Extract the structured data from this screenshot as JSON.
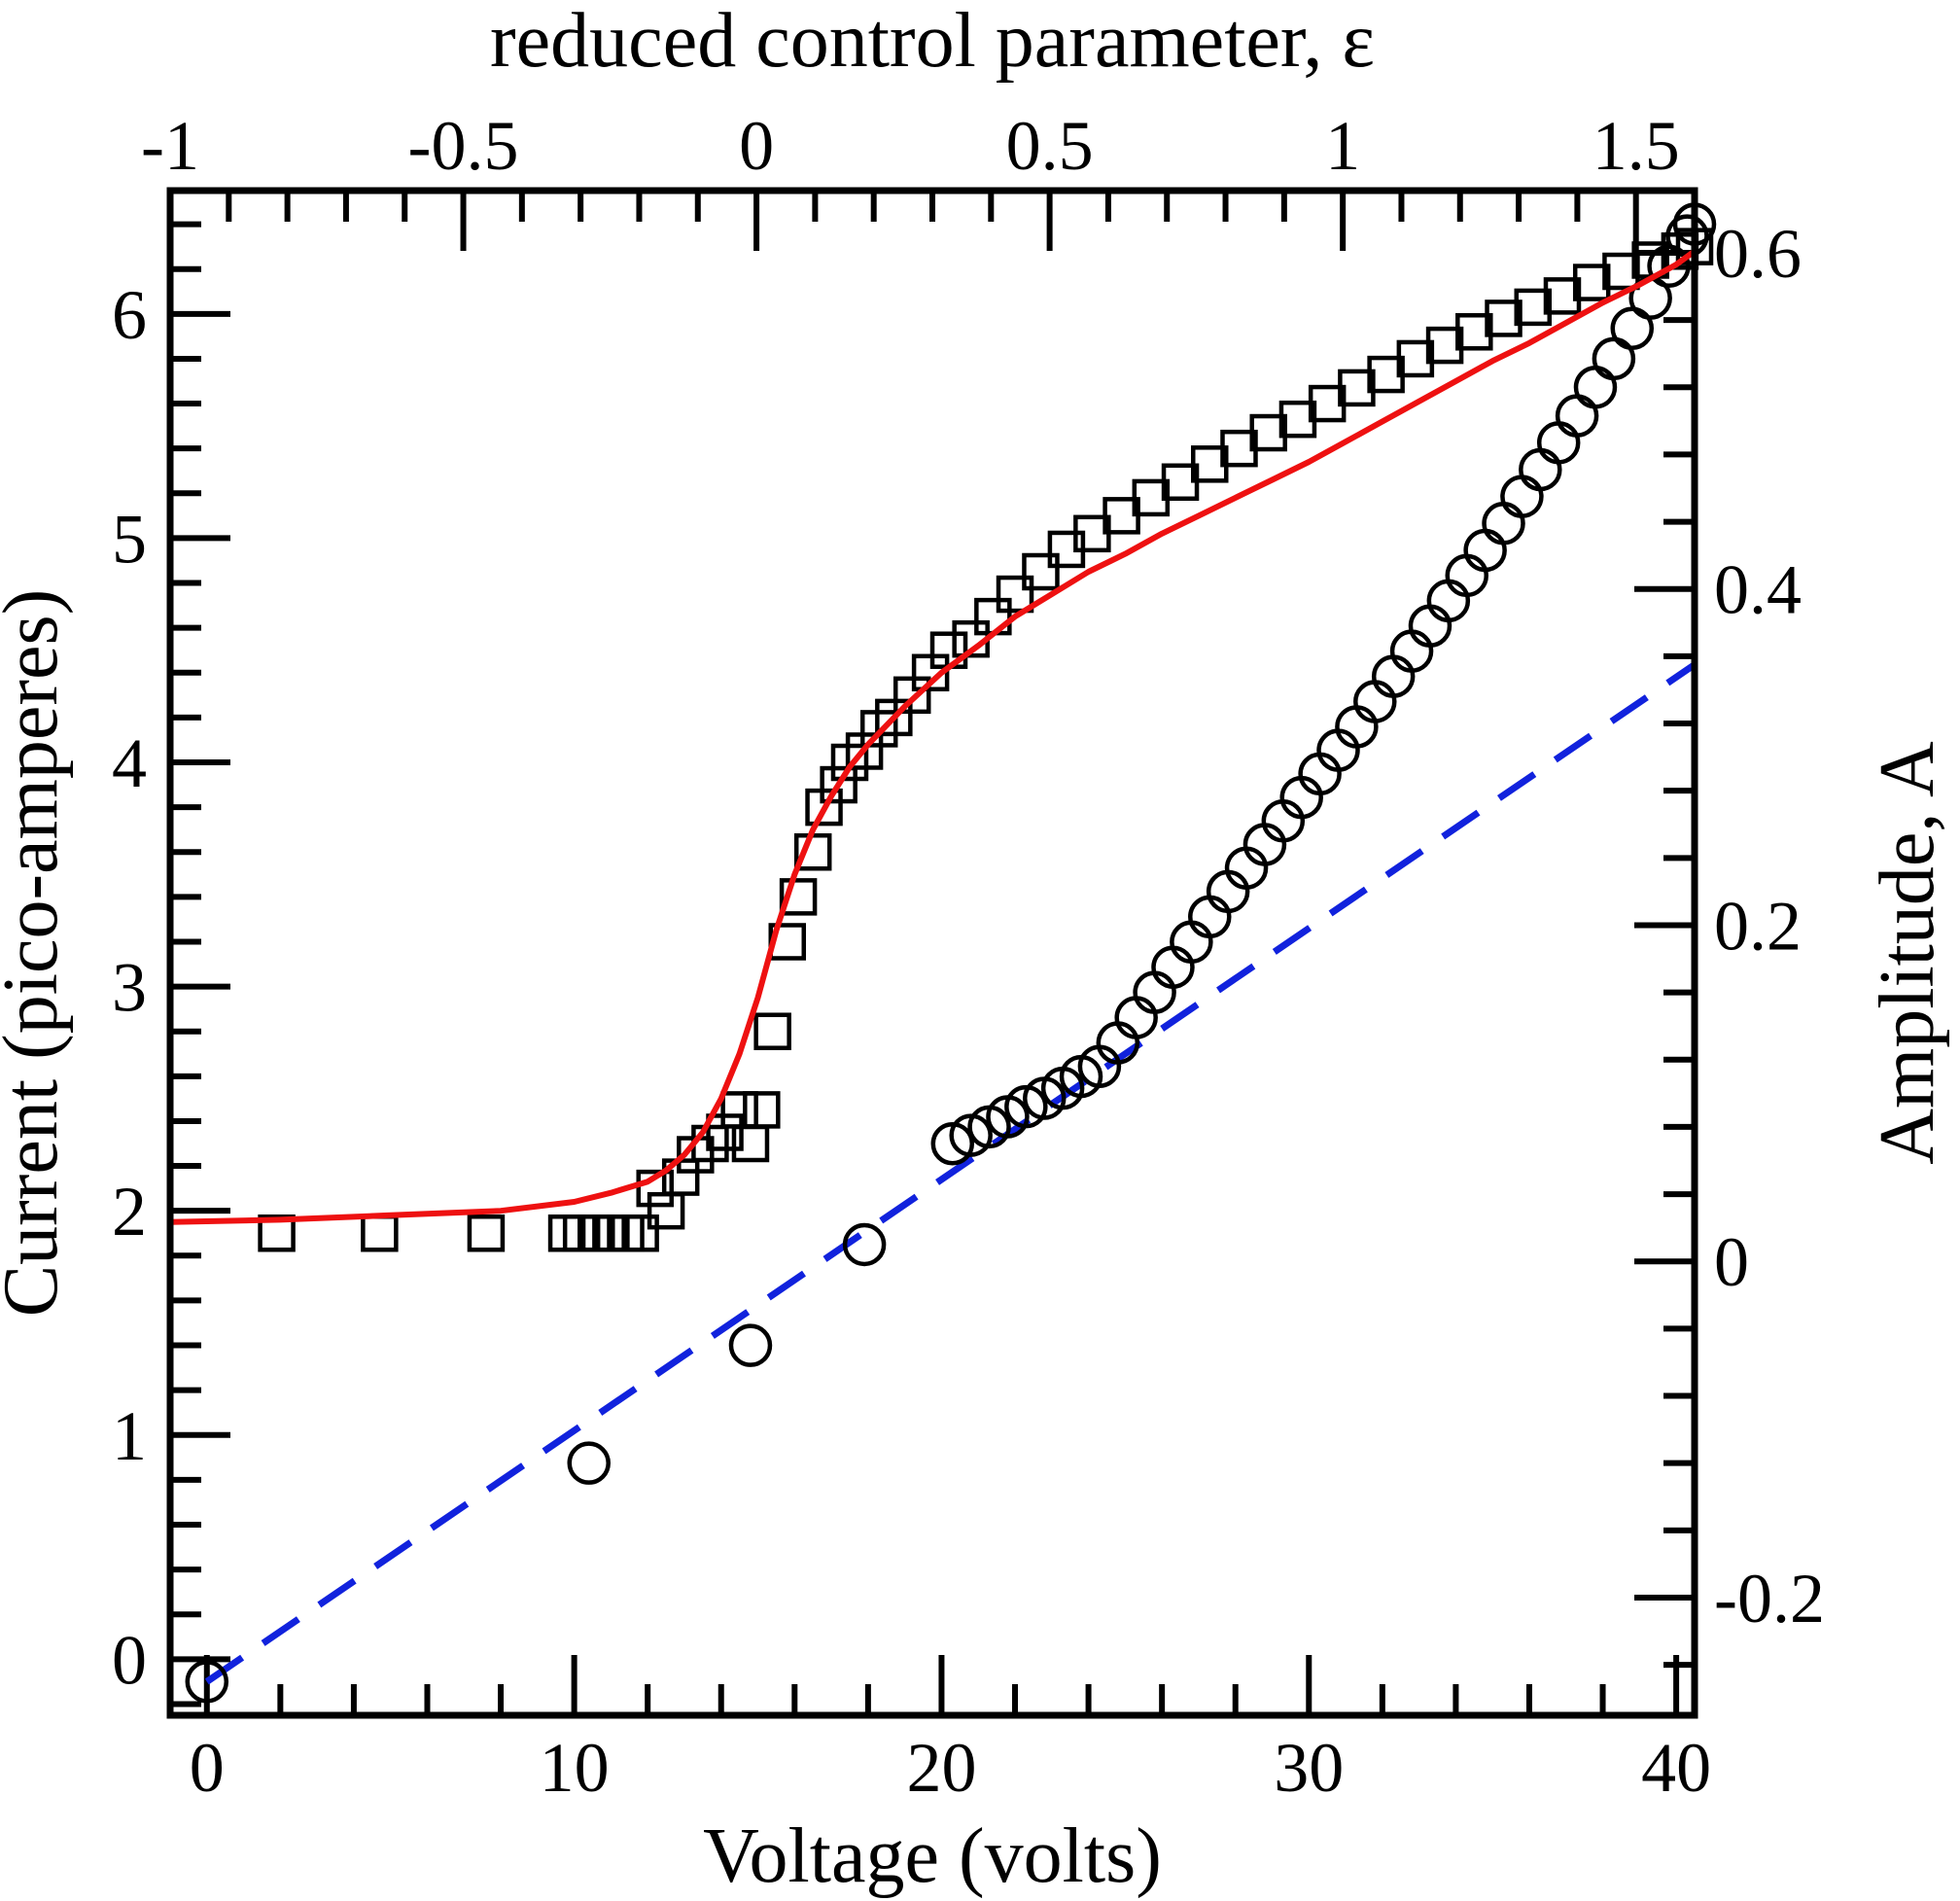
{
  "chart_data": {
    "type": "scatter",
    "x_bottom": {
      "label": "Voltage (volts)",
      "range": [
        -1,
        40.5
      ],
      "ticks": [
        0,
        10,
        20,
        30,
        40
      ],
      "tick_labels": [
        "0",
        "10",
        "20",
        "30",
        "40"
      ],
      "minor_step": 2
    },
    "x_top": {
      "label": "reduced control parameter, ε",
      "range": [
        -1,
        1.6
      ],
      "ticks": [
        -1,
        -0.5,
        0,
        0.5,
        1,
        1.5
      ],
      "tick_labels": [
        "-1",
        "-0.5",
        "0",
        "0.5",
        "1",
        "1.5"
      ],
      "minor_step": 0.1
    },
    "y_left": {
      "label": "Current (pico-amperes)",
      "range": [
        -0.25,
        6.55
      ],
      "ticks": [
        0,
        1,
        2,
        3,
        4,
        5,
        6
      ],
      "tick_labels": [
        "0",
        "1",
        "2",
        "3",
        "4",
        "5",
        "6"
      ],
      "minor_step": 0.2
    },
    "y_right": {
      "label": "Amplitude, A",
      "range": [
        -0.27,
        0.637
      ],
      "ticks": [
        -0.2,
        0,
        0.2,
        0.4,
        0.6
      ],
      "tick_labels": [
        "-0.2",
        "0",
        "0.2",
        "0.4",
        "0.6"
      ],
      "minor_step": 0.04
    },
    "grid": false,
    "series": [
      {
        "marker": "square",
        "axis": "left",
        "color": "#000000",
        "points": [
          [
            1.9,
            1.9
          ],
          [
            4.7,
            1.9
          ],
          [
            7.6,
            1.9
          ],
          [
            9.8,
            1.9
          ],
          [
            10.2,
            1.9
          ],
          [
            10.6,
            1.9
          ],
          [
            11.0,
            1.9
          ],
          [
            11.4,
            1.9
          ],
          [
            11.8,
            1.9
          ],
          [
            12.2,
            2.1
          ],
          [
            12.5,
            2.0
          ],
          [
            12.9,
            2.15
          ],
          [
            13.3,
            2.25
          ],
          [
            13.7,
            2.3
          ],
          [
            14.1,
            2.35
          ],
          [
            14.5,
            2.45
          ],
          [
            14.8,
            2.3
          ],
          [
            15.1,
            2.45
          ],
          [
            15.4,
            2.8
          ],
          [
            15.8,
            3.2
          ],
          [
            16.1,
            3.4
          ],
          [
            16.5,
            3.6
          ],
          [
            16.8,
            3.8
          ],
          [
            17.2,
            3.9
          ],
          [
            17.5,
            4.0
          ],
          [
            17.9,
            4.05
          ],
          [
            18.3,
            4.15
          ],
          [
            18.7,
            4.2
          ],
          [
            19.2,
            4.3
          ],
          [
            19.7,
            4.4
          ],
          [
            20.2,
            4.5
          ],
          [
            20.8,
            4.55
          ],
          [
            21.4,
            4.65
          ],
          [
            22.0,
            4.75
          ],
          [
            22.7,
            4.85
          ],
          [
            23.4,
            4.95
          ],
          [
            24.1,
            5.02
          ],
          [
            24.9,
            5.1
          ],
          [
            25.7,
            5.18
          ],
          [
            26.5,
            5.25
          ],
          [
            27.3,
            5.33
          ],
          [
            28.1,
            5.4
          ],
          [
            28.9,
            5.47
          ],
          [
            29.7,
            5.53
          ],
          [
            30.5,
            5.6
          ],
          [
            31.3,
            5.67
          ],
          [
            32.1,
            5.73
          ],
          [
            32.9,
            5.8
          ],
          [
            33.7,
            5.86
          ],
          [
            34.5,
            5.92
          ],
          [
            35.3,
            5.98
          ],
          [
            36.1,
            6.03
          ],
          [
            36.9,
            6.08
          ],
          [
            37.7,
            6.14
          ],
          [
            38.5,
            6.19
          ],
          [
            39.3,
            6.24
          ],
          [
            40.1,
            6.28
          ],
          [
            40.5,
            6.3
          ]
        ]
      },
      {
        "marker": "circle",
        "axis": "right",
        "color": "#000000",
        "points": [
          [
            0.0,
            -0.25
          ],
          [
            10.4,
            -0.12
          ],
          [
            14.8,
            -0.05
          ],
          [
            17.9,
            0.01
          ],
          [
            20.3,
            0.07
          ],
          [
            20.8,
            0.075
          ],
          [
            21.3,
            0.08
          ],
          [
            21.8,
            0.086
          ],
          [
            22.3,
            0.092
          ],
          [
            22.8,
            0.097
          ],
          [
            23.3,
            0.103
          ],
          [
            23.8,
            0.11
          ],
          [
            24.3,
            0.116
          ],
          [
            24.8,
            0.13
          ],
          [
            25.3,
            0.145
          ],
          [
            25.8,
            0.16
          ],
          [
            26.3,
            0.175
          ],
          [
            26.8,
            0.19
          ],
          [
            27.3,
            0.205
          ],
          [
            27.8,
            0.22
          ],
          [
            28.3,
            0.234
          ],
          [
            28.8,
            0.248
          ],
          [
            29.3,
            0.262
          ],
          [
            29.8,
            0.276
          ],
          [
            30.3,
            0.29
          ],
          [
            30.8,
            0.304
          ],
          [
            31.3,
            0.318
          ],
          [
            31.8,
            0.333
          ],
          [
            32.3,
            0.348
          ],
          [
            32.8,
            0.363
          ],
          [
            33.3,
            0.378
          ],
          [
            33.8,
            0.393
          ],
          [
            34.3,
            0.408
          ],
          [
            34.8,
            0.423
          ],
          [
            35.3,
            0.439
          ],
          [
            35.8,
            0.455
          ],
          [
            36.3,
            0.471
          ],
          [
            36.8,
            0.487
          ],
          [
            37.3,
            0.503
          ],
          [
            37.8,
            0.52
          ],
          [
            38.3,
            0.537
          ],
          [
            38.8,
            0.555
          ],
          [
            39.3,
            0.573
          ],
          [
            39.8,
            0.592
          ],
          [
            40.3,
            0.61
          ],
          [
            40.5,
            0.617
          ]
        ]
      },
      {
        "style": "solid line",
        "axis": "left",
        "color": "#ee1111",
        "points": [
          [
            -1.0,
            1.95
          ],
          [
            2.0,
            1.96
          ],
          [
            5.0,
            1.98
          ],
          [
            8.0,
            2.0
          ],
          [
            10.0,
            2.04
          ],
          [
            11.0,
            2.08
          ],
          [
            12.0,
            2.13
          ],
          [
            12.5,
            2.18
          ],
          [
            13.0,
            2.25
          ],
          [
            13.5,
            2.35
          ],
          [
            14.0,
            2.5
          ],
          [
            14.5,
            2.7
          ],
          [
            15.0,
            2.95
          ],
          [
            15.5,
            3.25
          ],
          [
            16.0,
            3.5
          ],
          [
            16.5,
            3.7
          ],
          [
            17.0,
            3.85
          ],
          [
            17.5,
            3.98
          ],
          [
            18.0,
            4.08
          ],
          [
            19.0,
            4.25
          ],
          [
            20.0,
            4.4
          ],
          [
            21.0,
            4.52
          ],
          [
            22.0,
            4.65
          ],
          [
            23.0,
            4.75
          ],
          [
            24.0,
            4.85
          ],
          [
            25.0,
            4.93
          ],
          [
            26.0,
            5.02
          ],
          [
            27.0,
            5.1
          ],
          [
            28.0,
            5.18
          ],
          [
            29.0,
            5.26
          ],
          [
            30.0,
            5.34
          ],
          [
            31.0,
            5.43
          ],
          [
            32.0,
            5.52
          ],
          [
            33.0,
            5.61
          ],
          [
            34.0,
            5.7
          ],
          [
            35.0,
            5.79
          ],
          [
            36.0,
            5.87
          ],
          [
            37.0,
            5.96
          ],
          [
            38.0,
            6.05
          ],
          [
            39.0,
            6.13
          ],
          [
            40.0,
            6.22
          ],
          [
            40.5,
            6.28
          ]
        ]
      },
      {
        "style": "dashed line",
        "axis": "right",
        "color": "#1122dd",
        "points": [
          [
            0.0,
            -0.25
          ],
          [
            40.5,
            0.355
          ]
        ]
      }
    ]
  }
}
